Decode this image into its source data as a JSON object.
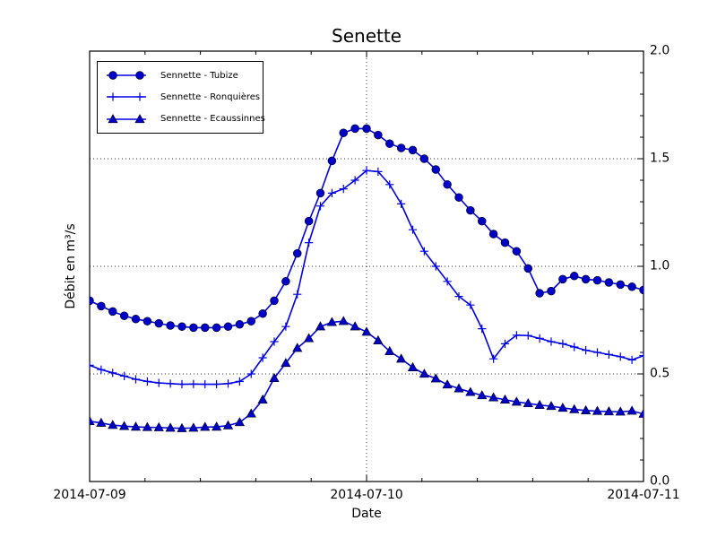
{
  "chart_data": {
    "type": "line",
    "title": "Senette",
    "xlabel": "Date",
    "ylabel": "Débit en m³/s",
    "grid": true,
    "legend_position": "upper left",
    "xlim": [
      0,
      48
    ],
    "ylim": [
      0.0,
      2.0
    ],
    "x_unit": "hours since 2014-07-09 00:00",
    "x_minor_step": 4.8,
    "y_minor_step": 0.1,
    "axis_color": "#000000",
    "grid_color": "#333333",
    "x_ticks": [
      {
        "value": 0,
        "label": "2014-07-09"
      },
      {
        "value": 24,
        "label": "2014-07-10"
      },
      {
        "value": 48,
        "label": "2014-07-11"
      }
    ],
    "y_ticks": [
      {
        "value": 0.0,
        "label": "0.0"
      },
      {
        "value": 0.5,
        "label": "0.5"
      },
      {
        "value": 1.0,
        "label": "1.0"
      },
      {
        "value": 1.5,
        "label": "1.5"
      },
      {
        "value": 2.0,
        "label": "2.0"
      }
    ],
    "x": [
      0,
      1,
      2,
      3,
      4,
      5,
      6,
      7,
      8,
      9,
      10,
      11,
      12,
      13,
      14,
      15,
      16,
      17,
      18,
      19,
      20,
      21,
      22,
      23,
      24,
      25,
      26,
      27,
      28,
      29,
      30,
      31,
      32,
      33,
      34,
      35,
      36,
      37,
      38,
      39,
      40,
      41,
      42,
      43,
      44,
      45,
      46,
      47,
      48
    ],
    "series": [
      {
        "name": "Sennette - Tubize",
        "marker": "circle",
        "line_color": "#0000e6",
        "marker_color": "#0000c8",
        "values": [
          0.84,
          0.815,
          0.79,
          0.77,
          0.755,
          0.745,
          0.735,
          0.725,
          0.72,
          0.715,
          0.715,
          0.715,
          0.72,
          0.73,
          0.745,
          0.78,
          0.84,
          0.93,
          1.06,
          1.21,
          1.34,
          1.49,
          1.62,
          1.64,
          1.64,
          1.61,
          1.57,
          1.55,
          1.54,
          1.5,
          1.45,
          1.38,
          1.32,
          1.26,
          1.21,
          1.15,
          1.11,
          1.07,
          0.99,
          0.875,
          0.885,
          0.94,
          0.955,
          0.94,
          0.935,
          0.925,
          0.915,
          0.905,
          0.89
        ]
      },
      {
        "name": "Sennette - Ronquières",
        "marker": "plus",
        "line_color": "#0000e6",
        "marker_color": "#0000e6",
        "values": [
          0.54,
          0.52,
          0.505,
          0.49,
          0.475,
          0.465,
          0.458,
          0.455,
          0.452,
          0.453,
          0.452,
          0.452,
          0.455,
          0.465,
          0.5,
          0.575,
          0.65,
          0.72,
          0.87,
          1.11,
          1.28,
          1.34,
          1.36,
          1.4,
          1.445,
          1.44,
          1.38,
          1.29,
          1.17,
          1.07,
          1.0,
          0.93,
          0.86,
          0.82,
          0.71,
          0.57,
          0.64,
          0.68,
          0.678,
          0.665,
          0.65,
          0.64,
          0.625,
          0.61,
          0.6,
          0.59,
          0.58,
          0.565,
          0.585
        ]
      },
      {
        "name": "Sennette - Ecaussinnes",
        "marker": "triangle",
        "line_color": "#0000e6",
        "marker_color": "#0000c8",
        "values": [
          0.28,
          0.272,
          0.262,
          0.257,
          0.254,
          0.252,
          0.251,
          0.249,
          0.247,
          0.249,
          0.253,
          0.254,
          0.26,
          0.275,
          0.315,
          0.38,
          0.48,
          0.55,
          0.62,
          0.665,
          0.72,
          0.74,
          0.745,
          0.72,
          0.695,
          0.655,
          0.605,
          0.57,
          0.53,
          0.5,
          0.478,
          0.45,
          0.432,
          0.415,
          0.4,
          0.39,
          0.38,
          0.37,
          0.363,
          0.355,
          0.35,
          0.342,
          0.335,
          0.33,
          0.327,
          0.325,
          0.324,
          0.328,
          0.314
        ]
      }
    ]
  }
}
